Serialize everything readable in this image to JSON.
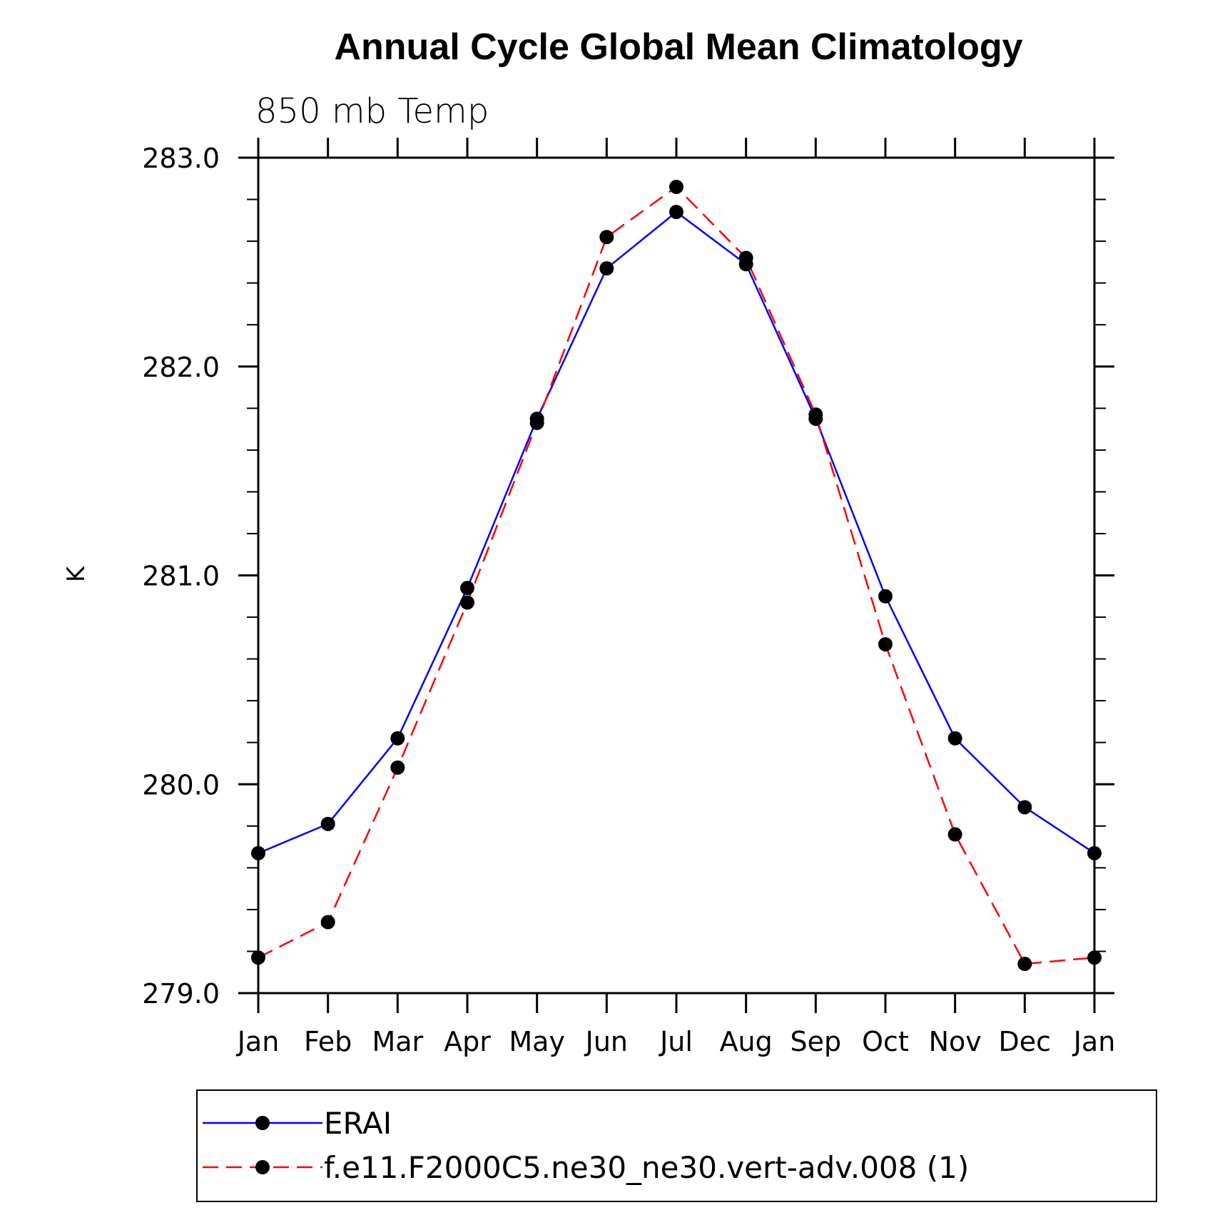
{
  "chart_data": {
    "type": "line",
    "title": "Annual Cycle Global Mean Climatology",
    "subtitle": "850 mb Temp",
    "xlabel": "",
    "ylabel": "K",
    "categories": [
      "Jan",
      "Feb",
      "Mar",
      "Apr",
      "May",
      "Jun",
      "Jul",
      "Aug",
      "Sep",
      "Oct",
      "Nov",
      "Dec",
      "Jan"
    ],
    "ylim": [
      279.0,
      283.0
    ],
    "yticks": [
      "279.0",
      "280.0",
      "281.0",
      "282.0",
      "283.0"
    ],
    "y_minor_step": 0.2,
    "grid": false,
    "legend_position": "bottom",
    "series": [
      {
        "name": "ERAI",
        "color": "#0000ff",
        "dash": "solid",
        "marker": "filled-circle",
        "values": [
          279.67,
          279.81,
          280.22,
          280.94,
          281.75,
          282.47,
          282.74,
          282.49,
          281.75,
          280.9,
          280.22,
          279.89,
          279.67
        ]
      },
      {
        "name": "f.e11.F2000C5.ne30_ne30.vert-adv.008 (1)",
        "color": "#ff0000",
        "dash": "dashed",
        "marker": "filled-circle",
        "values": [
          279.17,
          279.34,
          280.08,
          280.87,
          281.73,
          282.62,
          282.86,
          282.52,
          281.77,
          280.67,
          279.76,
          279.14,
          279.17
        ]
      }
    ]
  }
}
